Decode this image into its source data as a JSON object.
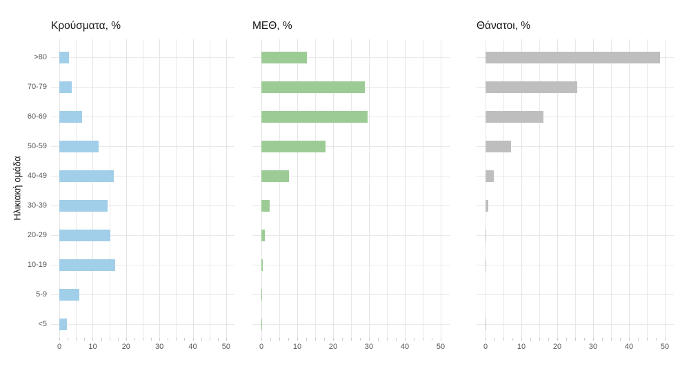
{
  "figure": {
    "y_axis_title": "Ηλικιακή ομάδα",
    "background_color": "#ffffff",
    "gridline_color": "#e8e8e8",
    "axis_text_color": "#565656",
    "age_groups": [
      ">80",
      "70-79",
      "60-69",
      "50-59",
      "40-49",
      "30-39",
      "20-29",
      "10-19",
      "5-9",
      "<5"
    ]
  },
  "chart_data": [
    {
      "type": "bar",
      "orientation": "horizontal",
      "title": "Κρούσματα, %",
      "color": "#a1cee8",
      "categories": [
        ">80",
        "70-79",
        "60-69",
        "50-59",
        "40-49",
        "30-39",
        "20-29",
        "10-19",
        "5-9",
        "<5"
      ],
      "values": [
        2.8,
        3.7,
        6.8,
        11.8,
        16.3,
        14.4,
        15.3,
        16.8,
        6.0,
        2.2
      ],
      "xlim": [
        0,
        50
      ],
      "xticks": [
        0,
        10,
        20,
        30,
        40,
        50
      ],
      "grid": "on",
      "legend": "none"
    },
    {
      "type": "bar",
      "orientation": "horizontal",
      "title": "ΜΕΘ, %",
      "color": "#9ccb96",
      "categories": [
        ">80",
        "70-79",
        "60-69",
        "50-59",
        "40-49",
        "30-39",
        "20-29",
        "10-19",
        "5-9",
        "<5"
      ],
      "values": [
        12.6,
        28.9,
        29.7,
        17.9,
        7.6,
        2.4,
        1.0,
        0.3,
        0.1,
        0.2
      ],
      "xlim": [
        0,
        50
      ],
      "xticks": [
        0,
        10,
        20,
        30,
        40,
        50
      ],
      "grid": "on",
      "legend": "none"
    },
    {
      "type": "bar",
      "orientation": "horizontal",
      "title": "Θάνατοι, %",
      "color": "#bebebe",
      "categories": [
        ">80",
        "70-79",
        "60-69",
        "50-59",
        "40-49",
        "30-39",
        "20-29",
        "10-19",
        "5-9",
        "<5"
      ],
      "values": [
        48.7,
        25.6,
        16.1,
        7.2,
        2.4,
        0.8,
        0.25,
        0.25,
        0,
        0.25
      ],
      "xlim": [
        0,
        50
      ],
      "xticks": [
        0,
        10,
        20,
        30,
        40,
        50
      ],
      "grid": "on",
      "legend": "none"
    }
  ]
}
